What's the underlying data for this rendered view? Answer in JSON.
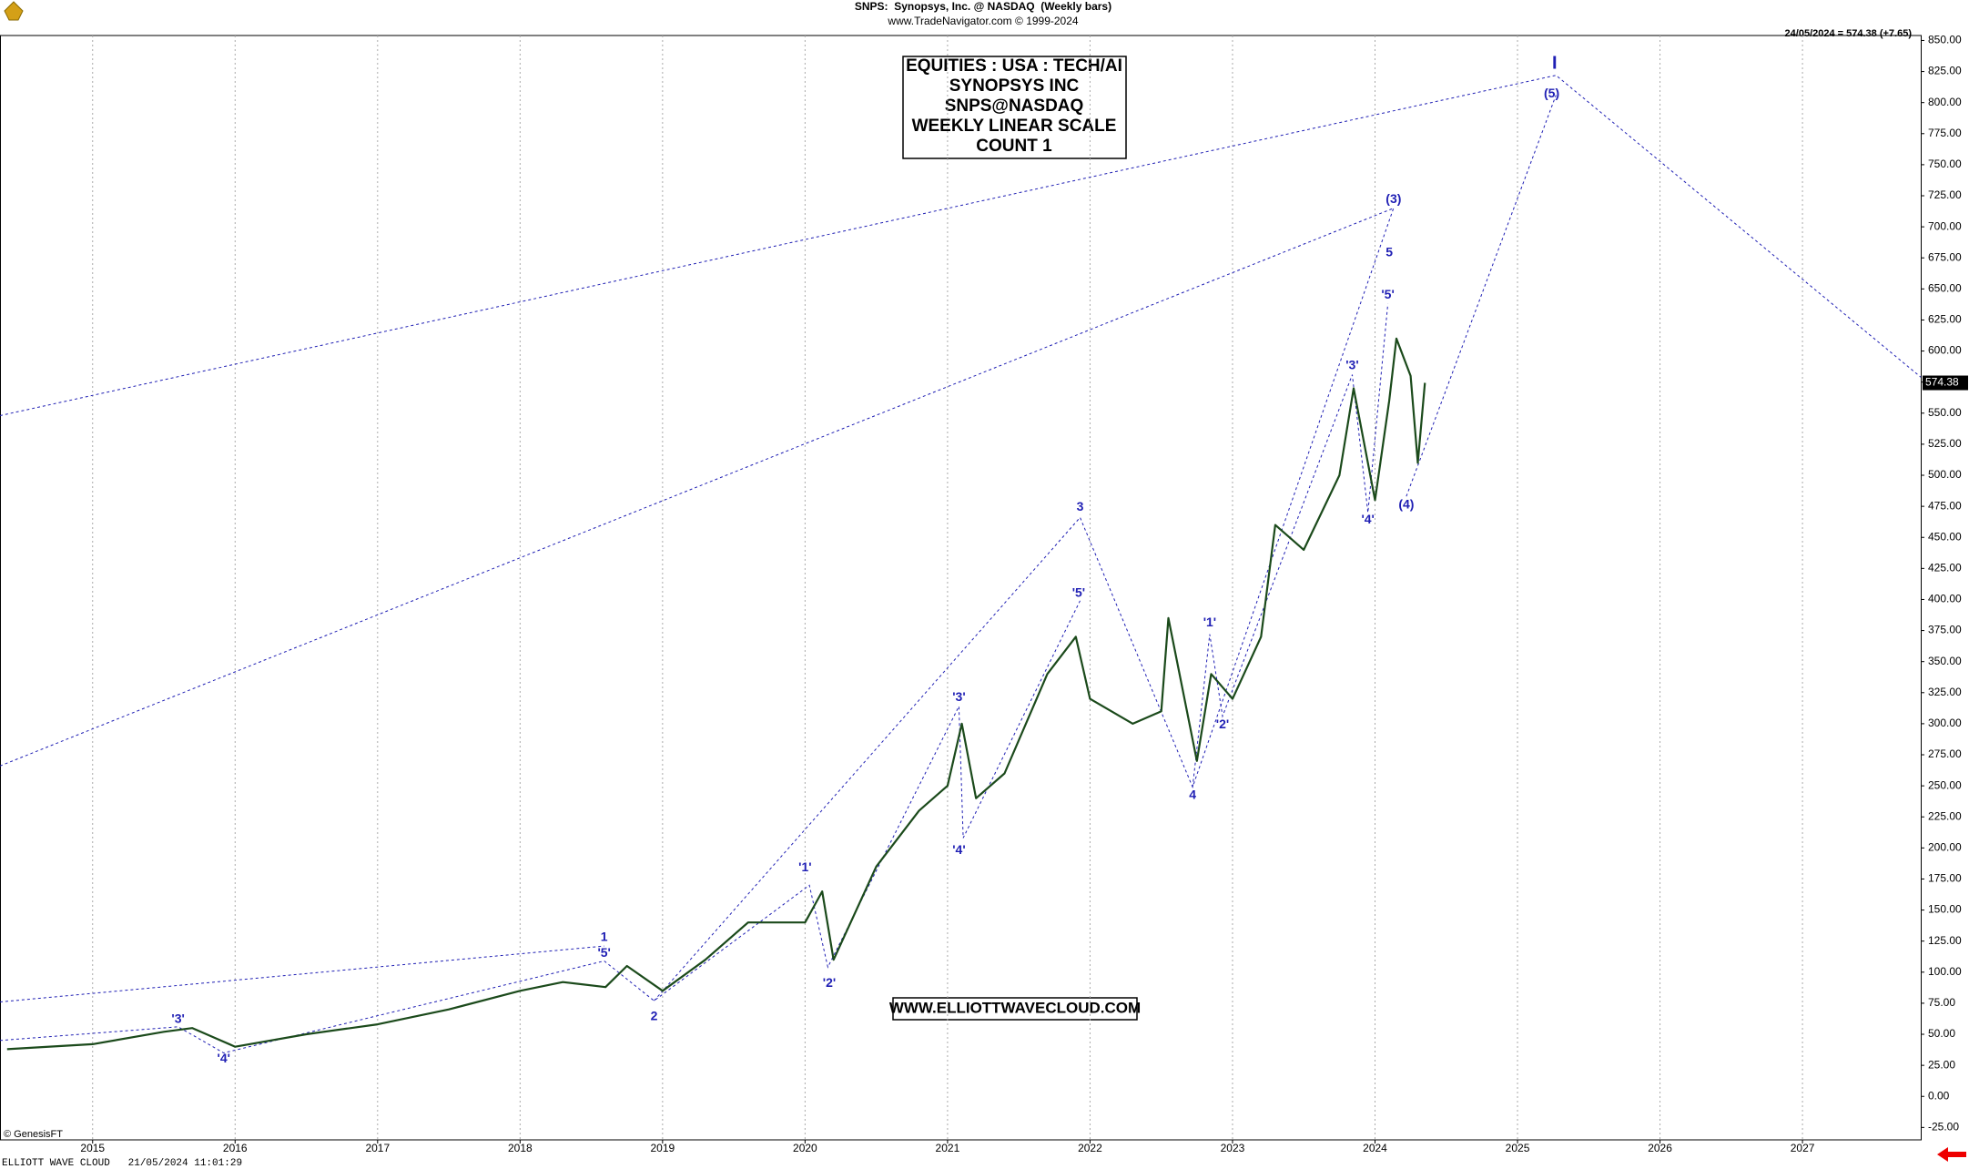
{
  "chart_data": {
    "type": "line",
    "title": "SNPS:  Synopsys, Inc. @ NASDAQ  (Weekly bars)",
    "subtitle": "www.TradeNavigator.com © 1999-2024",
    "last_quote": "24/05/2024 = 574.38 (+7.65)",
    "last_price_label": "574.38",
    "info_box": [
      "EQUITIES : USA : TECH/AI",
      "SYNOPSYS INC",
      "SNPS@NASDAQ",
      "WEEKLY LINEAR SCALE",
      "COUNT 1"
    ],
    "website": "WWW.ELLIOTTWAVECLOUD.COM",
    "data_credit": "© GenesisFT",
    "footer": "ELLIOTT WAVE CLOUD   21/05/2024 11:01:29",
    "x": [
      2014.4,
      2015.0,
      2015.5,
      2015.7,
      2016.0,
      2016.5,
      2017.0,
      2017.5,
      2018.0,
      2018.3,
      2018.6,
      2018.75,
      2019.0,
      2019.3,
      2019.6,
      2020.0,
      2020.12,
      2020.2,
      2020.5,
      2020.8,
      2021.0,
      2021.1,
      2021.2,
      2021.4,
      2021.7,
      2021.9,
      2022.0,
      2022.3,
      2022.5,
      2022.55,
      2022.75,
      2022.85,
      2023.0,
      2023.2,
      2023.3,
      2023.5,
      2023.75,
      2023.85,
      2024.0,
      2024.1,
      2024.15,
      2024.25,
      2024.3,
      2024.35
    ],
    "series": [
      {
        "name": "SNPS",
        "color": "#1b4a1b",
        "values": [
          38,
          42,
          52,
          55,
          40,
          50,
          58,
          70,
          85,
          92,
          88,
          105,
          85,
          110,
          140,
          140,
          165,
          110,
          185,
          230,
          250,
          300,
          240,
          260,
          340,
          370,
          320,
          300,
          310,
          385,
          270,
          340,
          320,
          370,
          460,
          440,
          500,
          570,
          480,
          560,
          610,
          580,
          510,
          574.38
        ]
      }
    ],
    "wave_color": "#1f1fb4",
    "wave_labels": [
      {
        "text": "'3'",
        "x": 2015.6,
        "y": 62
      },
      {
        "text": "'4'",
        "x": 2015.92,
        "y": 30
      },
      {
        "text": "1",
        "x": 2018.59,
        "y": 128
      },
      {
        "text": "'5'",
        "x": 2018.59,
        "y": 115
      },
      {
        "text": "2",
        "x": 2018.94,
        "y": 64
      },
      {
        "text": "'1'",
        "x": 2020.0,
        "y": 184
      },
      {
        "text": "'2'",
        "x": 2020.17,
        "y": 91
      },
      {
        "text": "'3'",
        "x": 2021.08,
        "y": 321
      },
      {
        "text": "'4'",
        "x": 2021.08,
        "y": 198
      },
      {
        "text": "'5'",
        "x": 2021.92,
        "y": 405
      },
      {
        "text": "3",
        "x": 2021.93,
        "y": 474
      },
      {
        "text": "4",
        "x": 2022.72,
        "y": 242
      },
      {
        "text": "'1'",
        "x": 2022.84,
        "y": 381
      },
      {
        "text": "'2'",
        "x": 2022.93,
        "y": 299
      },
      {
        "text": "'3'",
        "x": 2023.84,
        "y": 588
      },
      {
        "text": "'4'",
        "x": 2023.95,
        "y": 464
      },
      {
        "text": "'5'",
        "x": 2024.09,
        "y": 645
      },
      {
        "text": "5",
        "x": 2024.1,
        "y": 679
      },
      {
        "text": "(3)",
        "x": 2024.13,
        "y": 722
      },
      {
        "text": "(4)",
        "x": 2024.22,
        "y": 476
      },
      {
        "text": "(5)",
        "x": 2025.24,
        "y": 807
      },
      {
        "text": "I",
        "x": 2025.26,
        "y": 831
      }
    ],
    "wave_lines": [
      {
        "x": [
          2014.35,
          2025.27,
          2027.83
        ],
        "y": [
          548,
          822,
          579
        ]
      },
      {
        "x": [
          2014.35,
          2024.13
        ],
        "y": [
          266,
          715
        ]
      },
      {
        "x": [
          2014.35,
          2018.59
        ],
        "y": [
          76,
          121
        ]
      },
      {
        "x": [
          2014.35,
          2015.6,
          2015.92,
          2018.59,
          2018.94,
          2020.03,
          2020.16,
          2021.08,
          2021.11,
          2021.93
        ],
        "y": [
          45,
          56,
          35,
          109,
          77,
          170,
          104,
          314,
          208,
          399
        ]
      },
      {
        "x": [
          2018.94,
          2021.93,
          2022.72,
          2024.13
        ],
        "y": [
          77,
          466,
          249,
          715
        ]
      },
      {
        "x": [
          2022.72,
          2022.84,
          2022.93,
          2023.84,
          2023.95,
          2024.09
        ],
        "y": [
          249,
          372,
          306,
          581,
          470,
          638
        ]
      },
      {
        "x": [
          2024.22,
          2025.27
        ],
        "y": [
          483,
          806
        ]
      }
    ],
    "xlim": [
      2014.35,
      2027.83
    ],
    "xticks": [
      2015,
      2016,
      2017,
      2018,
      2019,
      2020,
      2021,
      2022,
      2023,
      2024,
      2025,
      2026,
      2027
    ],
    "xgrid": true,
    "ylim": [
      -35,
      854
    ],
    "yticks": [
      {
        "value": 850,
        "label": "850.00"
      },
      {
        "value": 825,
        "label": "825.00"
      },
      {
        "value": 800,
        "label": "800.00"
      },
      {
        "value": 775,
        "label": "775.00"
      },
      {
        "value": 750,
        "label": "750.00"
      },
      {
        "value": 725,
        "label": "725.00"
      },
      {
        "value": 700,
        "label": "700.00"
      },
      {
        "value": 675,
        "label": "675.00"
      },
      {
        "value": 650,
        "label": "650.00"
      },
      {
        "value": 625,
        "label": "625.00"
      },
      {
        "value": 600,
        "label": "600.00"
      },
      {
        "value": 575,
        "label": "575.00"
      },
      {
        "value": 550,
        "label": "550.00"
      },
      {
        "value": 525,
        "label": "525.00"
      },
      {
        "value": 500,
        "label": "500.00"
      },
      {
        "value": 475,
        "label": "475.00"
      },
      {
        "value": 450,
        "label": "450.00"
      },
      {
        "value": 425,
        "label": "425.00"
      },
      {
        "value": 400,
        "label": "400.00"
      },
      {
        "value": 375,
        "label": "375.00"
      },
      {
        "value": 350,
        "label": "350.00"
      },
      {
        "value": 325,
        "label": "325.00"
      },
      {
        "value": 300,
        "label": "300.00"
      },
      {
        "value": 275,
        "label": "275.00"
      },
      {
        "value": 250,
        "label": "250.00"
      },
      {
        "value": 225,
        "label": "225.00"
      },
      {
        "value": 200,
        "label": "200.00"
      },
      {
        "value": 175,
        "label": "175.00"
      },
      {
        "value": 150,
        "label": "150.00"
      },
      {
        "value": 125,
        "label": "125.00"
      },
      {
        "value": 100,
        "label": "100.00"
      },
      {
        "value": 75,
        "label": "75.00"
      },
      {
        "value": 50,
        "label": "50.00"
      },
      {
        "value": 25,
        "label": "25.00"
      },
      {
        "value": 0,
        "label": "0.00"
      },
      {
        "value": -25,
        "label": "-25.00"
      }
    ]
  }
}
